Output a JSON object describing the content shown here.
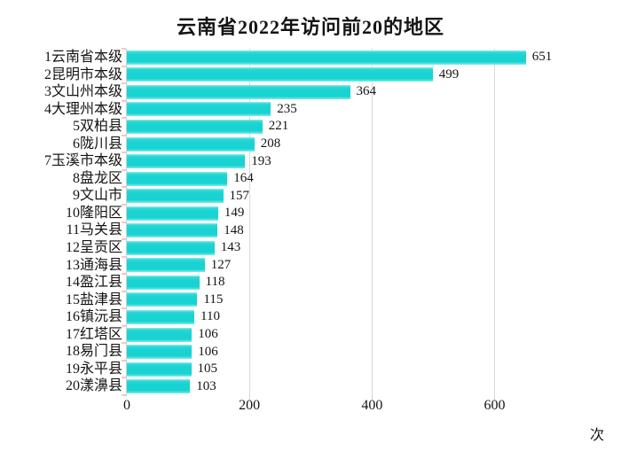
{
  "chart_data": {
    "type": "bar",
    "orientation": "horizontal",
    "title": "云南省2022年访问前20的地区",
    "categories": [
      "1云南省本级",
      "2昆明市本级",
      "3文山州本级",
      "4大理州本级",
      "5双柏县",
      "6陇川县",
      "7玉溪市本级",
      "8盘龙区",
      "9文山市",
      "10隆阳区",
      "11马关县",
      "12呈贡区",
      "13通海县",
      "14盈江县",
      "15盐津县",
      "16镇沅县",
      "17红塔区",
      "18易门县",
      "19永平县",
      "20漾濞县"
    ],
    "values": [
      651,
      499,
      364,
      235,
      221,
      208,
      193,
      164,
      157,
      149,
      148,
      143,
      127,
      118,
      115,
      110,
      106,
      106,
      105,
      103
    ],
    "value_labels": true,
    "xlabel": "次",
    "ylabel": "",
    "xlim": [
      0,
      800
    ],
    "x_ticks": [
      0,
      200,
      400,
      600
    ],
    "grid": true,
    "legend": false
  },
  "colors": {
    "bar": "#19d2d2",
    "bar_highlight": "#8aeeea",
    "gridline": "#d9d9d9",
    "axis_line": "#d0d0d0",
    "y_tick": "#f3c5cf",
    "text": "#141414",
    "background": "#ffffff"
  }
}
